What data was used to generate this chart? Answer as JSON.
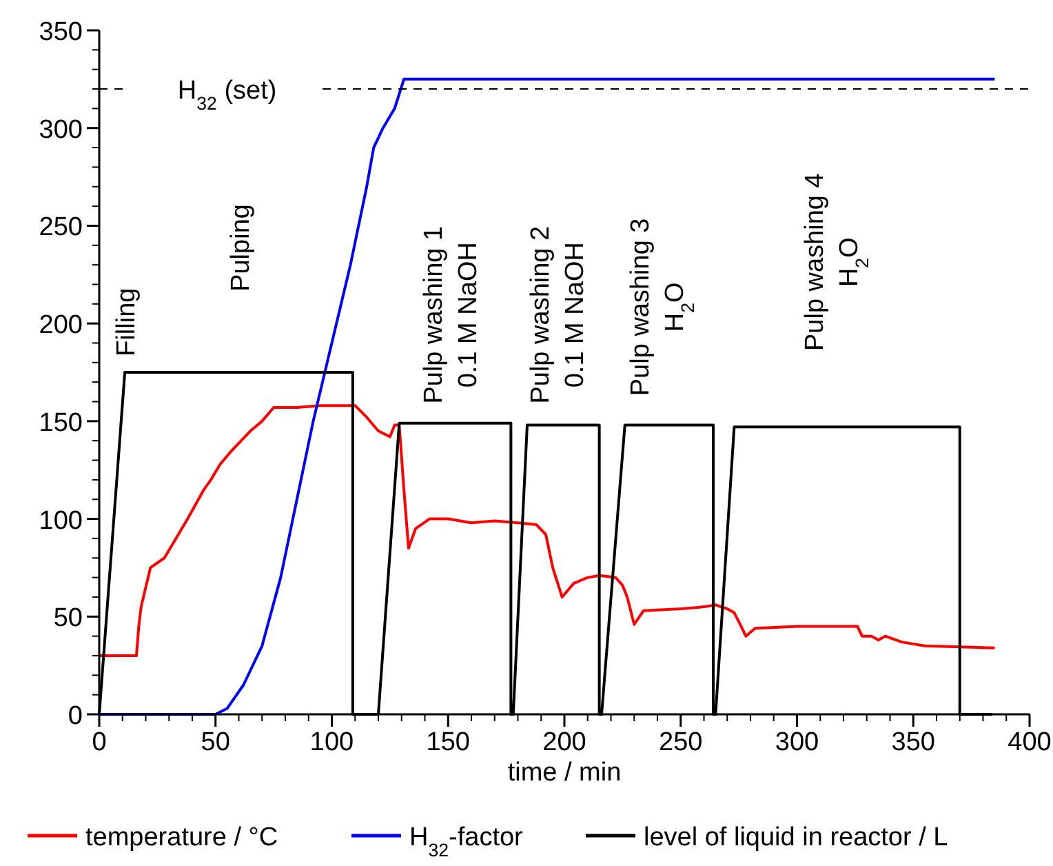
{
  "chart_data": {
    "type": "line",
    "xlabel": "time / min",
    "xlim": [
      0,
      400
    ],
    "xticks": [
      0,
      50,
      100,
      150,
      200,
      250,
      300,
      350,
      400
    ],
    "ylim": [
      0,
      350
    ],
    "yticks": [
      0,
      50,
      100,
      150,
      200,
      250,
      300,
      350
    ],
    "legend": "bottom",
    "line_style": "solid",
    "grid": false,
    "series": [
      {
        "name": "temperature / °C",
        "color": "#ff0000",
        "x": [
          0,
          16,
          17,
          18,
          22,
          28,
          33,
          38,
          45,
          48,
          52,
          57,
          65,
          70,
          75,
          85,
          95,
          100,
          110,
          115,
          120,
          125,
          127,
          129,
          131,
          133,
          136,
          142,
          150,
          160,
          170,
          180,
          188,
          192,
          195,
          199,
          204,
          210,
          215,
          222,
          225,
          227,
          230,
          234,
          250,
          260,
          265,
          270,
          273,
          276,
          278,
          282,
          300,
          326,
          328,
          332,
          335,
          338,
          345,
          355,
          385
        ],
        "values": [
          30,
          30,
          45,
          55,
          75,
          80,
          90,
          100,
          115,
          120,
          128,
          135,
          145,
          150,
          157,
          157,
          158,
          158,
          158,
          152,
          145,
          142,
          148,
          148,
          115,
          85,
          95,
          100,
          100,
          98,
          99,
          98,
          97,
          92,
          75,
          60,
          67,
          70,
          71,
          70,
          66,
          60,
          46,
          53,
          54,
          55,
          56,
          54,
          52,
          45,
          40,
          44,
          45,
          45,
          40,
          40,
          38,
          40,
          37,
          35,
          34
        ]
      },
      {
        "name": "H$_{32}$-factor",
        "color": "#0000ff",
        "x": [
          0,
          50,
          55,
          62,
          70,
          78,
          85,
          92,
          100,
          108,
          115,
          118,
          122,
          127,
          131,
          385
        ],
        "values": [
          0,
          0,
          3,
          15,
          35,
          70,
          110,
          150,
          190,
          230,
          270,
          290,
          300,
          310,
          325,
          325
        ]
      },
      {
        "name": "level of liquid in reactor / L",
        "color": "#000000",
        "x": [
          0,
          11,
          109,
          109,
          120,
          129,
          177,
          177,
          178,
          184,
          215,
          215,
          216,
          226,
          264,
          264,
          265,
          273,
          370,
          370,
          384
        ],
        "values": [
          0,
          175,
          175,
          0,
          0,
          149,
          149,
          0,
          0,
          148,
          148,
          0,
          0,
          148,
          148,
          0,
          0,
          147,
          147,
          0,
          0
        ]
      }
    ],
    "ref_lines": [
      {
        "axis": "y",
        "value": 320,
        "label": "H$_{32}$ (set)",
        "color": "#000000",
        "line_style": "dashed"
      }
    ],
    "annotations": [
      "Filling",
      "Pulping",
      "Pulp washing 1\n0.1 M NaOH",
      "Pulp washing 2\n0.1 M NaOH",
      "Pulp washing 3\nH$_{2}$O",
      "Pulp washing 4\nH$_{2}$O"
    ]
  }
}
